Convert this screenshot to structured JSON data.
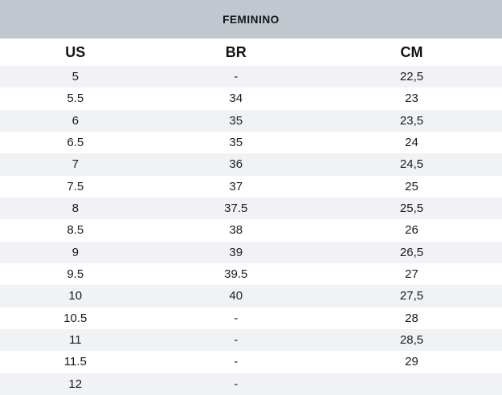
{
  "title": "FEMININO",
  "colors": {
    "title_band_bg": "#c1c7ce",
    "row_stripe_bg": "#f0f2f5",
    "row_plain_bg": "#ffffff",
    "text": "#17181a"
  },
  "table": {
    "columns": [
      "US",
      "BR",
      "CM"
    ],
    "rows": [
      [
        "5",
        "-",
        "22,5"
      ],
      [
        "5.5",
        "34",
        "23"
      ],
      [
        "6",
        "35",
        "23,5"
      ],
      [
        "6.5",
        "35",
        "24"
      ],
      [
        "7",
        "36",
        "24,5"
      ],
      [
        "7.5",
        "37",
        "25"
      ],
      [
        "8",
        "37.5",
        "25,5"
      ],
      [
        "8.5",
        "38",
        "26"
      ],
      [
        "9",
        "39",
        "26,5"
      ],
      [
        "9.5",
        "39.5",
        "27"
      ],
      [
        "10",
        "40",
        "27,5"
      ],
      [
        "10.5",
        "-",
        "28"
      ],
      [
        "11",
        "-",
        "28,5"
      ],
      [
        "11.5",
        "-",
        "29"
      ],
      [
        "12",
        "-",
        ""
      ]
    ]
  },
  "chart_data": {
    "type": "table",
    "title": "FEMININO",
    "columns": [
      "US",
      "BR",
      "CM"
    ],
    "rows": [
      [
        "5",
        "-",
        "22,5"
      ],
      [
        "5.5",
        "34",
        "23"
      ],
      [
        "6",
        "35",
        "23,5"
      ],
      [
        "6.5",
        "35",
        "24"
      ],
      [
        "7",
        "36",
        "24,5"
      ],
      [
        "7.5",
        "37",
        "25"
      ],
      [
        "8",
        "37.5",
        "25,5"
      ],
      [
        "8.5",
        "38",
        "26"
      ],
      [
        "9",
        "39",
        "26,5"
      ],
      [
        "9.5",
        "39.5",
        "27"
      ],
      [
        "10",
        "40",
        "27,5"
      ],
      [
        "10.5",
        "-",
        "28"
      ],
      [
        "11",
        "-",
        "28,5"
      ],
      [
        "11.5",
        "-",
        "29"
      ],
      [
        "12",
        "-",
        ""
      ]
    ]
  }
}
